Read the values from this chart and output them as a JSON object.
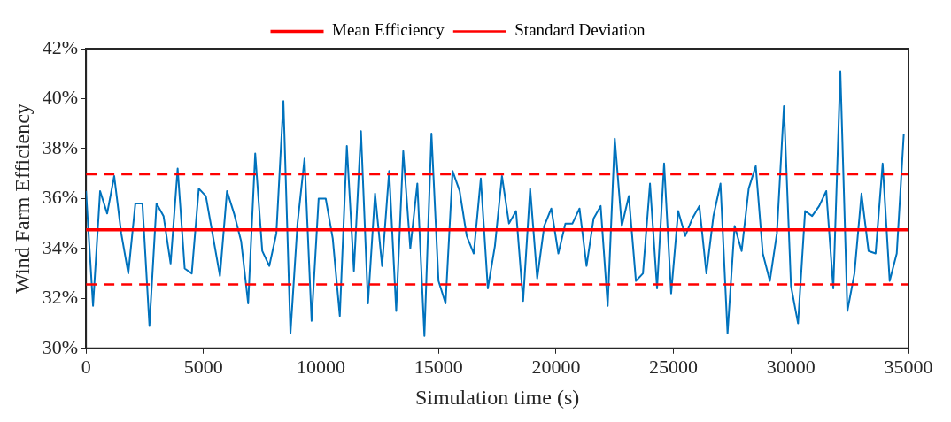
{
  "chart_data": {
    "type": "line",
    "xlabel": "Simulation time (s)",
    "ylabel": "Wind Farm Efficiency",
    "x": [
      0,
      300,
      600,
      900,
      1200,
      1500,
      1800,
      2100,
      2400,
      2700,
      3000,
      3300,
      3600,
      3900,
      4200,
      4500,
      4800,
      5100,
      5400,
      5700,
      6000,
      6300,
      6600,
      6900,
      7200,
      7500,
      7800,
      8100,
      8400,
      8700,
      9000,
      9300,
      9600,
      9900,
      10200,
      10500,
      10800,
      11100,
      11400,
      11700,
      12000,
      12300,
      12600,
      12900,
      13200,
      13500,
      13800,
      14100,
      14400,
      14700,
      15000,
      15300,
      15600,
      15900,
      16200,
      16500,
      16800,
      17100,
      17400,
      17700,
      18000,
      18300,
      18600,
      18900,
      19200,
      19500,
      19800,
      20100,
      20400,
      20700,
      21000,
      21300,
      21600,
      21900,
      22200,
      22500,
      22800,
      23100,
      23400,
      23700,
      24000,
      24300,
      24600,
      24900,
      25200,
      25500,
      25800,
      26100,
      26400,
      26700,
      27000,
      27300,
      27600,
      27900,
      28200,
      28500,
      28800,
      29100,
      29400,
      29700,
      30000,
      30300,
      30600,
      30900,
      31200,
      31500,
      31800,
      32100,
      32400,
      32700,
      33000,
      33300,
      33600,
      33900,
      34200,
      34500,
      34800
    ],
    "series": [
      {
        "color": "#0072bd",
        "values": [
          36.3,
          31.7,
          36.3,
          35.4,
          36.9,
          34.6,
          33.0,
          35.8,
          35.8,
          30.9,
          35.8,
          35.3,
          33.4,
          37.2,
          33.2,
          33.0,
          36.4,
          36.1,
          34.5,
          32.9,
          36.3,
          35.4,
          34.3,
          31.8,
          37.8,
          33.9,
          33.3,
          34.6,
          39.9,
          30.6,
          35.0,
          37.6,
          31.1,
          36.0,
          36.0,
          34.4,
          31.3,
          38.1,
          33.1,
          38.7,
          31.8,
          36.2,
          33.3,
          37.1,
          31.5,
          37.9,
          34.0,
          36.6,
          30.5,
          38.6,
          32.7,
          31.8,
          37.1,
          36.3,
          34.5,
          33.8,
          36.8,
          32.4,
          34.1,
          36.9,
          35.0,
          35.5,
          31.9,
          36.4,
          32.8,
          34.9,
          35.6,
          33.8,
          35.0,
          35.0,
          35.6,
          33.3,
          35.2,
          35.7,
          31.7,
          38.4,
          34.9,
          36.1,
          32.7,
          33.0,
          36.6,
          32.4,
          37.4,
          32.2,
          35.5,
          34.5,
          35.2,
          35.7,
          33.0,
          35.3,
          36.6,
          30.6,
          34.9,
          33.9,
          36.4,
          37.3,
          33.8,
          32.7,
          34.6,
          39.7,
          32.5,
          31.0,
          35.5,
          35.3,
          35.7,
          36.3,
          32.4,
          41.1,
          31.5,
          33.0,
          36.2,
          33.9,
          33.8,
          37.4,
          32.7,
          33.8,
          38.6
        ]
      }
    ],
    "xlim": [
      0,
      35000
    ],
    "xticks": [
      0,
      5000,
      10000,
      15000,
      20000,
      25000,
      30000,
      35000
    ],
    "ylim": [
      30,
      42
    ],
    "yticks": [
      {
        "value": 30,
        "label": "30%"
      },
      {
        "value": 32,
        "label": "32%"
      },
      {
        "value": 34,
        "label": "34%"
      },
      {
        "value": 36,
        "label": "36%"
      },
      {
        "value": 38,
        "label": "38%"
      },
      {
        "value": 40,
        "label": "40%"
      },
      {
        "value": 42,
        "label": "42%"
      }
    ],
    "ref_lines": [
      {
        "axis": "y",
        "value": 34.75,
        "label": "Mean Efficiency",
        "color": "#ff0000",
        "line_style": "solid"
      },
      {
        "axis": "y",
        "value": 36.97,
        "label": "Standard Deviation",
        "color": "#ff0000",
        "line_style": "dashed"
      },
      {
        "axis": "y",
        "value": 32.56,
        "label": null,
        "color": "#ff0000",
        "line_style": "dashed"
      }
    ],
    "grid": false,
    "legend": "top",
    "marker": "none",
    "line_style": "solid"
  }
}
